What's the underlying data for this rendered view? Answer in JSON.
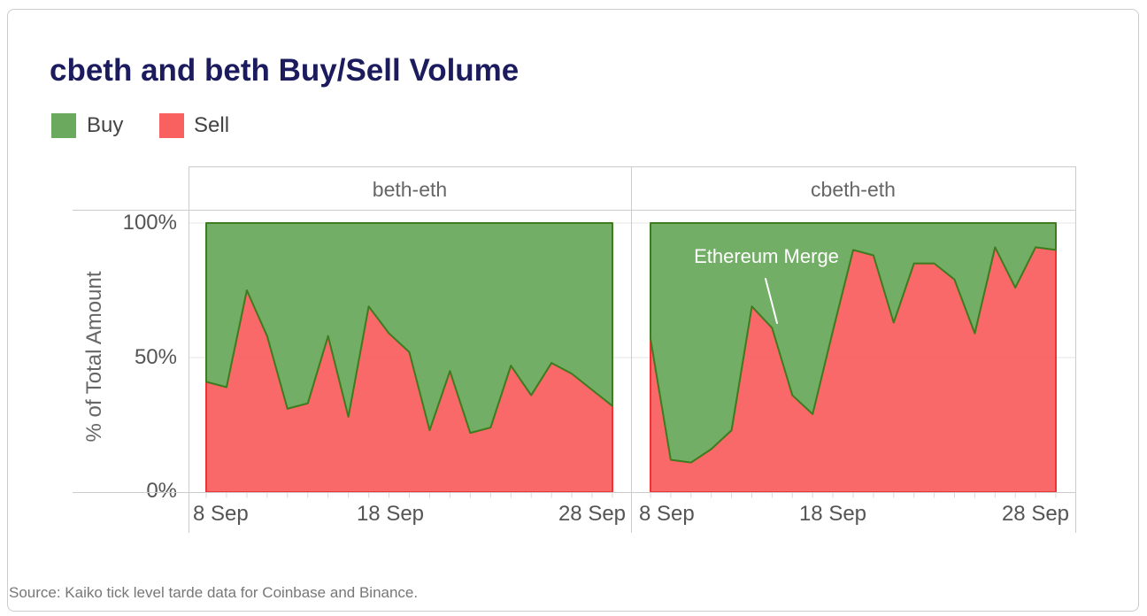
{
  "title": "cbeth and beth Buy/Sell Volume",
  "legend": {
    "items": [
      {
        "label": "Buy",
        "color": "#6BAA5E"
      },
      {
        "label": "Sell",
        "color": "#F96161"
      }
    ]
  },
  "axes": {
    "y_title": "% of Total Amount",
    "y_ticks": [
      "100%",
      "50%",
      "0%"
    ],
    "x_ticks": [
      "8 Sep",
      "18 Sep",
      "28 Sep"
    ]
  },
  "annotation": {
    "label": "Ethereum Merge"
  },
  "source_note": "Source: Kaiko tick level tarde data for Coinbase and Binance.",
  "colors": {
    "title": "#1b1b5e",
    "buy_fill": "#6BAA5E",
    "buy_stroke": "#3E7D1F",
    "sell_fill": "#F96161",
    "sell_stroke": "#EE3333",
    "gridline": "#e6e6e6",
    "panel_border": "#cccccc",
    "tick_mark": "#d8d8d8",
    "annotation_text": "#ffffff"
  },
  "chart_data": {
    "type": "area",
    "stacked": true,
    "title": "cbeth and beth Buy/Sell Volume",
    "ylabel": "% of Total Amount",
    "ylim": [
      0,
      100
    ],
    "y_tick_values": [
      0,
      50,
      100
    ],
    "x_tick_labels": [
      "8 Sep",
      "18 Sep",
      "28 Sep"
    ],
    "legend_position": "top-left",
    "grid": "horizontal",
    "x_dates": [
      "8 Sep",
      "9 Sep",
      "10 Sep",
      "11 Sep",
      "12 Sep",
      "13 Sep",
      "14 Sep",
      "15 Sep",
      "16 Sep",
      "17 Sep",
      "18 Sep",
      "19 Sep",
      "20 Sep",
      "21 Sep",
      "22 Sep",
      "23 Sep",
      "24 Sep",
      "25 Sep",
      "26 Sep",
      "27 Sep",
      "28 Sep"
    ],
    "facets": [
      {
        "title": "beth-eth",
        "series": [
          {
            "name": "Sell",
            "values": [
              41,
              39,
              75,
              58,
              31,
              33,
              58,
              28,
              69,
              59,
              52,
              23,
              45,
              22,
              24,
              47,
              36,
              48,
              44,
              38,
              32
            ]
          },
          {
            "name": "Buy",
            "values": [
              59,
              61,
              25,
              42,
              69,
              67,
              42,
              72,
              31,
              41,
              48,
              77,
              55,
              78,
              76,
              53,
              64,
              52,
              56,
              62,
              68
            ]
          }
        ]
      },
      {
        "title": "cbeth-eth",
        "series": [
          {
            "name": "Sell",
            "values": [
              57,
              12,
              11,
              16,
              23,
              69,
              61,
              36,
              29,
              60,
              90,
              88,
              63,
              85,
              85,
              79,
              59,
              91,
              76,
              91,
              90
            ]
          },
          {
            "name": "Buy",
            "values": [
              43,
              88,
              89,
              84,
              77,
              31,
              39,
              64,
              71,
              40,
              10,
              12,
              37,
              15,
              15,
              21,
              41,
              9,
              24,
              9,
              10
            ]
          }
        ],
        "annotation": {
          "label": "Ethereum Merge",
          "x": "14 Sep",
          "y": 61
        }
      }
    ]
  }
}
